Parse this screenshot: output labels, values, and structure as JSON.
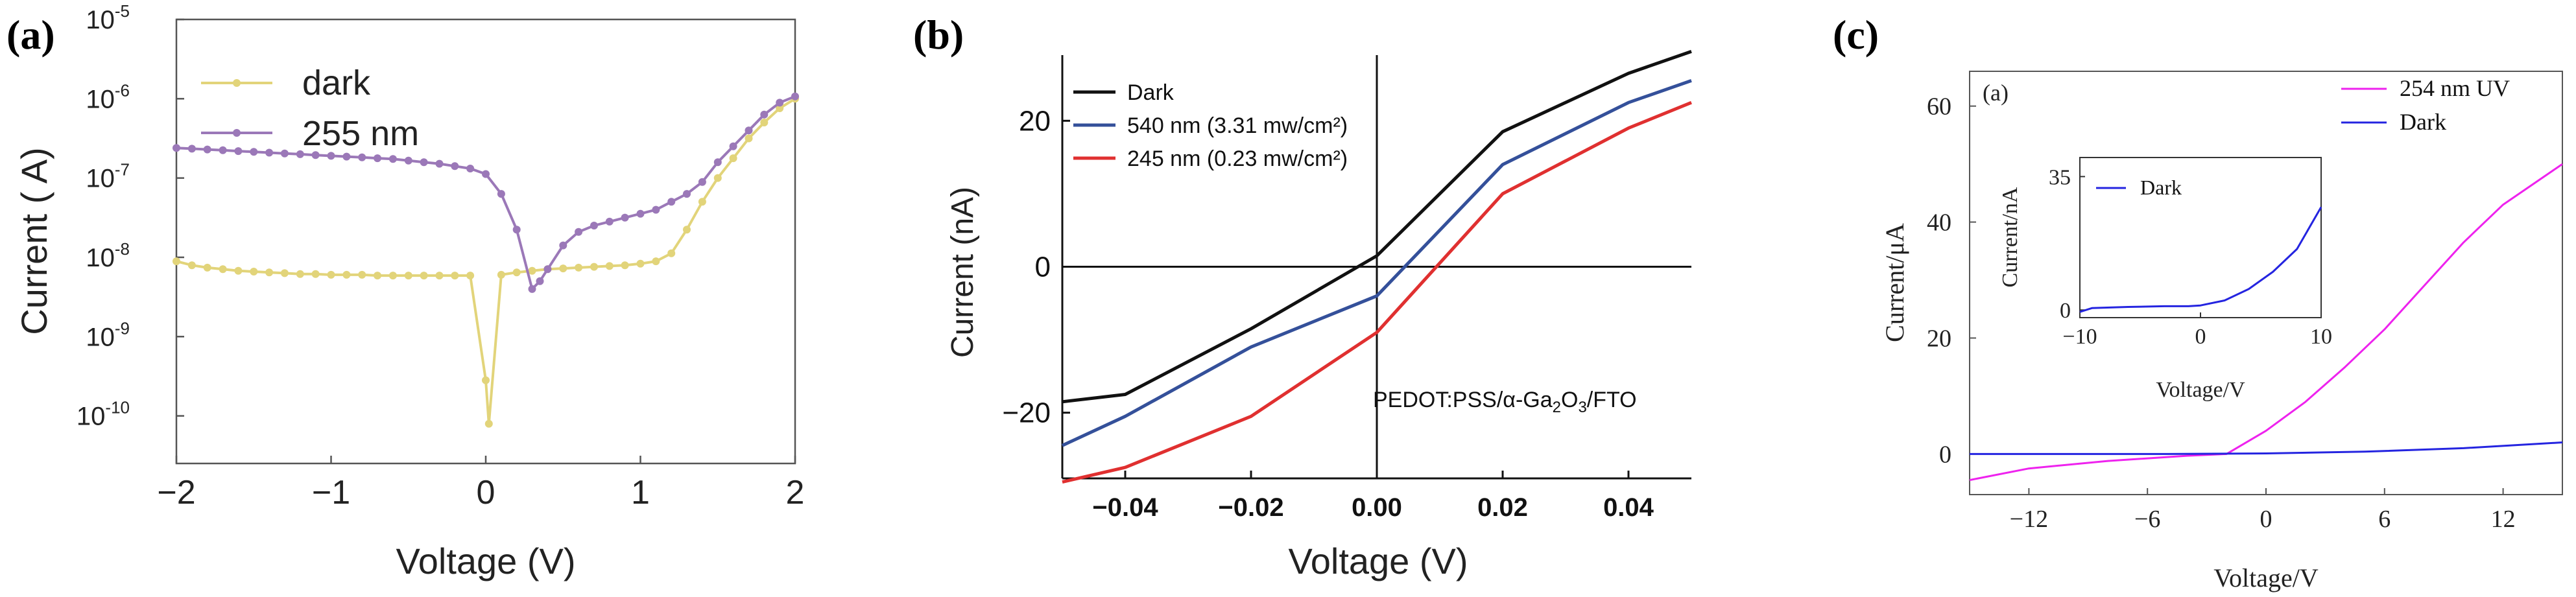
{
  "panel_labels": [
    "(a)",
    "(b)",
    "(c)"
  ],
  "chart_data": [
    {
      "id": "a",
      "type": "line",
      "yscale": "log",
      "xlabel": "Voltage (V)",
      "ylabel": "Current ( A)",
      "xlim": [
        -2,
        2
      ],
      "ylim_exp": [
        -10.6,
        -5
      ],
      "xticks": [
        "−2",
        "−1",
        "0",
        "1",
        "2"
      ],
      "xtick_values": [
        -2,
        -1,
        0,
        1,
        2
      ],
      "yticks": [
        {
          "base": "10",
          "exp": "-10"
        },
        {
          "base": "10",
          "exp": "-9"
        },
        {
          "base": "10",
          "exp": "-8"
        },
        {
          "base": "10",
          "exp": "-7"
        },
        {
          "base": "10",
          "exp": "-6"
        },
        {
          "base": "10",
          "exp": "-5"
        }
      ],
      "ytick_exps": [
        -10,
        -9,
        -8,
        -7,
        -6,
        -5
      ],
      "series": [
        {
          "name": "dark",
          "color": "#e2d47a",
          "x": [
            -2,
            -1.9,
            -1.8,
            -1.7,
            -1.6,
            -1.5,
            -1.4,
            -1.3,
            -1.2,
            -1.1,
            -1.0,
            -0.9,
            -0.8,
            -0.7,
            -0.6,
            -0.5,
            -0.4,
            -0.3,
            -0.2,
            -0.1,
            0.0,
            0.02,
            0.1,
            0.2,
            0.3,
            0.4,
            0.5,
            0.6,
            0.7,
            0.8,
            0.9,
            1.0,
            1.1,
            1.2,
            1.3,
            1.4,
            1.5,
            1.6,
            1.7,
            1.8,
            1.9,
            2.0
          ],
          "log10": [
            -8.05,
            -8.1,
            -8.13,
            -8.15,
            -8.17,
            -8.18,
            -8.19,
            -8.2,
            -8.21,
            -8.21,
            -8.22,
            -8.22,
            -8.22,
            -8.23,
            -8.23,
            -8.23,
            -8.23,
            -8.23,
            -8.23,
            -8.23,
            -9.55,
            -10.1,
            -8.22,
            -8.19,
            -8.17,
            -8.15,
            -8.14,
            -8.13,
            -8.12,
            -8.11,
            -8.1,
            -8.08,
            -8.05,
            -7.95,
            -7.65,
            -7.3,
            -7.0,
            -6.75,
            -6.5,
            -6.3,
            -6.12,
            -6.0
          ]
        },
        {
          "name": "255 nm",
          "color": "#9b78b8",
          "x": [
            -2,
            -1.9,
            -1.8,
            -1.7,
            -1.6,
            -1.5,
            -1.4,
            -1.3,
            -1.2,
            -1.1,
            -1.0,
            -0.9,
            -0.8,
            -0.7,
            -0.6,
            -0.5,
            -0.4,
            -0.3,
            -0.2,
            -0.1,
            0.0,
            0.1,
            0.2,
            0.3,
            0.35,
            0.4,
            0.5,
            0.6,
            0.7,
            0.8,
            0.9,
            1.0,
            1.1,
            1.2,
            1.3,
            1.4,
            1.5,
            1.6,
            1.7,
            1.8,
            1.9,
            2.0
          ],
          "log10": [
            -6.62,
            -6.63,
            -6.64,
            -6.65,
            -6.66,
            -6.67,
            -6.68,
            -6.69,
            -6.7,
            -6.71,
            -6.72,
            -6.73,
            -6.74,
            -6.75,
            -6.76,
            -6.78,
            -6.8,
            -6.82,
            -6.85,
            -6.88,
            -6.95,
            -7.2,
            -7.65,
            -8.4,
            -8.3,
            -8.15,
            -7.85,
            -7.68,
            -7.6,
            -7.55,
            -7.5,
            -7.45,
            -7.4,
            -7.3,
            -7.2,
            -7.05,
            -6.8,
            -6.6,
            -6.4,
            -6.2,
            -6.05,
            -5.97
          ]
        }
      ]
    },
    {
      "id": "b",
      "type": "line",
      "xlabel": "Voltage (V)",
      "ylabel": "Current (nA)",
      "xlim": [
        -0.05,
        0.05
      ],
      "ylim": [
        -29,
        29
      ],
      "xticks": [
        "−0.04",
        "−0.02",
        "0.00",
        "0.02",
        "0.04"
      ],
      "xtick_values": [
        -0.04,
        -0.02,
        0,
        0.02,
        0.04
      ],
      "yticks": [
        "−20",
        "0",
        "20"
      ],
      "ytick_values": [
        -20,
        0,
        20
      ],
      "annotation": {
        "prefix": "PEDOT:PSS/",
        "alpha": "α",
        "mid": "-Ga",
        "sub1": "2",
        "o": "O",
        "sub2": "3",
        "suffix": "/FTO"
      },
      "series": [
        {
          "name": "Dark",
          "color": "#111111",
          "x": [
            -0.05,
            -0.04,
            -0.02,
            0.0,
            0.02,
            0.04,
            0.05
          ],
          "y": [
            -18.5,
            -17.5,
            -8.5,
            1.5,
            18.5,
            26.5,
            29.5
          ]
        },
        {
          "name": "540 nm (3.31 mw/cm²)",
          "color": "#34509a",
          "x": [
            -0.05,
            -0.04,
            -0.02,
            0.0,
            0.02,
            0.04,
            0.05
          ],
          "y": [
            -24.5,
            -20.5,
            -11.0,
            -4.0,
            14.0,
            22.5,
            25.5
          ]
        },
        {
          "name": "245 nm (0.23 mw/cm²)",
          "color": "#e03030",
          "x": [
            -0.05,
            -0.04,
            -0.02,
            0.0,
            0.02,
            0.04,
            0.05
          ],
          "y": [
            -29.5,
            -27.5,
            -20.5,
            -9.0,
            10.0,
            19.0,
            22.5
          ]
        }
      ]
    },
    {
      "id": "c",
      "type": "line",
      "xlabel": "Voltage/V",
      "ylabel": "Current/μA",
      "xlim": [
        -15,
        15
      ],
      "ylim": [
        -7,
        66
      ],
      "xticks": [
        "−12",
        "−6",
        "0",
        "6",
        "12"
      ],
      "xtick_values": [
        -12,
        -6,
        0,
        6,
        12
      ],
      "yticks": [
        "0",
        "20",
        "40",
        "60"
      ],
      "ytick_values": [
        0,
        20,
        40,
        60
      ],
      "subtitle": "(a)",
      "series": [
        {
          "name": "254 nm UV",
          "color": "#ee22ee",
          "x": [
            -15,
            -12,
            -8,
            -4,
            -2,
            0,
            2,
            4,
            6,
            8,
            10,
            12,
            15
          ],
          "y": [
            -4.5,
            -2.5,
            -1.2,
            -0.3,
            0.0,
            4.0,
            9.0,
            15.0,
            21.5,
            29.0,
            36.5,
            43.0,
            50.0
          ]
        },
        {
          "name": "Dark",
          "color": "#2424e0",
          "x": [
            -15,
            -10,
            -5,
            0,
            5,
            10,
            15
          ],
          "y": [
            0.0,
            0.0,
            0.0,
            0.1,
            0.4,
            1.0,
            2.0
          ]
        }
      ],
      "inset": {
        "xlabel": "Voltage/V",
        "ylabel": "Current/nA",
        "xlim": [
          -10,
          10
        ],
        "ylim": [
          -2,
          40
        ],
        "xticks": [
          "−10",
          "0",
          "10"
        ],
        "xtick_values": [
          -10,
          0,
          10
        ],
        "yticks": [
          "0",
          "35"
        ],
        "ytick_values": [
          0,
          35
        ],
        "series": [
          {
            "name": "Dark",
            "color": "#2424e0",
            "x": [
              -10,
              -9,
              -6,
              -3,
              -1,
              0,
              2,
              4,
              6,
              8,
              10
            ],
            "y": [
              -0.5,
              0.5,
              0.8,
              1.0,
              1.0,
              1.2,
              2.5,
              5.5,
              10.0,
              16.0,
              27.0
            ]
          }
        ]
      }
    }
  ]
}
